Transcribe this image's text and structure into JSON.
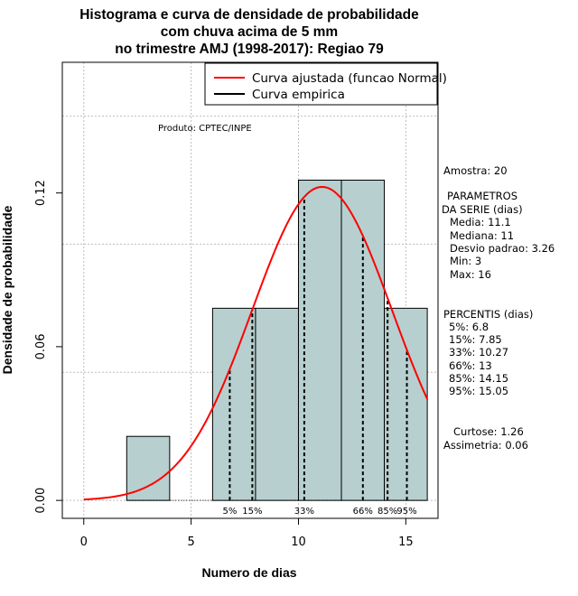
{
  "chart_data": {
    "type": "bar",
    "title_lines": [
      "Histograma e curva de densidade de probabilidade",
      "com chuva acima de 5 mm",
      "no trimestre AMJ (1998-2017): Regiao 79"
    ],
    "xlabel": "Numero de dias",
    "ylabel": "Densidade de probabilidade",
    "xlim": [
      -1,
      16.5
    ],
    "ylim": [
      -0.007,
      0.171
    ],
    "x_ticks": [
      0,
      5,
      10,
      15
    ],
    "x_tick_labels": [
      "0",
      "5",
      "10",
      "15"
    ],
    "y_ticks": [
      0.0,
      0.06,
      0.12
    ],
    "y_tick_labels": [
      "0.00",
      "0.06",
      "0.12"
    ],
    "grid": true,
    "grid_x": [
      0,
      5,
      10,
      15
    ],
    "grid_y": [
      0.0,
      0.05,
      0.1,
      0.15
    ],
    "histogram": {
      "bin_edges": [
        2,
        4,
        6,
        8,
        10,
        12,
        14,
        16
      ],
      "density": [
        0.025,
        0.0,
        0.075,
        0.075,
        0.125,
        0.125,
        0.075
      ],
      "fill": "#b7cfcf",
      "edge": "#000000"
    },
    "fitted_curve": {
      "name": "Curva ajustada (funcao Normal)",
      "color": "#ff0000",
      "mean": 11.1,
      "sd": 3.26,
      "x_range": [
        0,
        16
      ]
    },
    "empirical_curve": {
      "name": "Curva empirica",
      "color": "#000000"
    },
    "percentile_markers": [
      {
        "label": "5%",
        "x": 6.8
      },
      {
        "label": "15%",
        "x": 7.85
      },
      {
        "label": "33%",
        "x": 10.27
      },
      {
        "label": "66%",
        "x": 13
      },
      {
        "label": "85%",
        "x": 14.15
      },
      {
        "label": "95%",
        "x": 15.05
      }
    ],
    "legend_position": "top-right",
    "annotation": "Produto: CPTEC/INPE"
  },
  "side_panel": {
    "sample": "Amostra: 20",
    "params_title_1": "PARAMETROS",
    "params_title_2": "DA SERIE (dias)",
    "media": "Media: 11.1",
    "mediana": "Mediana: 11",
    "desvio": "Desvio padrao: 3.26",
    "min": "Min: 3",
    "max": "Max: 16",
    "percentis_title": "PERCENTIS (dias)",
    "p5": "5%: 6.8",
    "p15": "15%: 7.85",
    "p33": "33%: 10.27",
    "p66": "66%: 13",
    "p85": "85%: 14.15",
    "p95": "95%: 15.05",
    "curtose": "Curtose: 1.26",
    "assimetria": "Assimetria: 0.06"
  }
}
